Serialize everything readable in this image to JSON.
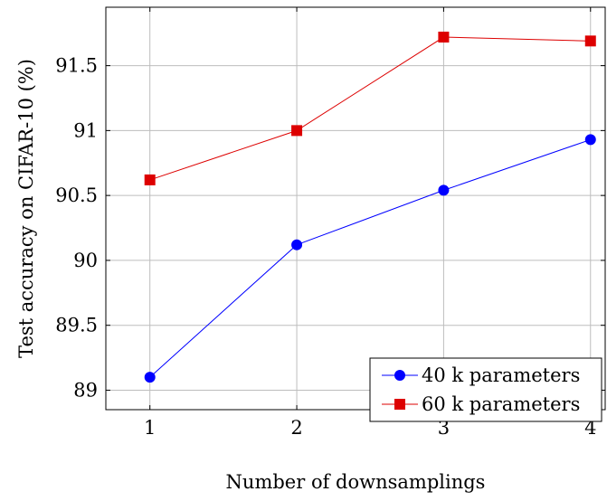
{
  "chart_data": {
    "type": "line",
    "title": "",
    "xlabel": "Number of downsamplings",
    "ylabel": "Test accuracy on CIFAR-10 (%)",
    "x": [
      1,
      2,
      3,
      4
    ],
    "xlim": [
      0.7,
      4.1
    ],
    "ylim": [
      88.85,
      91.95
    ],
    "xticks": [
      1,
      2,
      3,
      4
    ],
    "xtick_labels": [
      "1",
      "2",
      "3",
      "4"
    ],
    "yticks": [
      89,
      89.5,
      90,
      90.5,
      91,
      91.5
    ],
    "ytick_labels": [
      "89",
      "89.5",
      "90",
      "90.5",
      "91",
      "91.5"
    ],
    "grid": true,
    "legend_position": "bottom-right",
    "series": [
      {
        "name": "40 k parameters",
        "values": [
          89.1,
          90.12,
          90.54,
          90.93
        ],
        "color": "#0000ff",
        "marker": "circle"
      },
      {
        "name": "60 k parameters",
        "values": [
          90.62,
          91.0,
          91.72,
          91.69
        ],
        "color": "#dd0000",
        "marker": "square"
      }
    ]
  }
}
